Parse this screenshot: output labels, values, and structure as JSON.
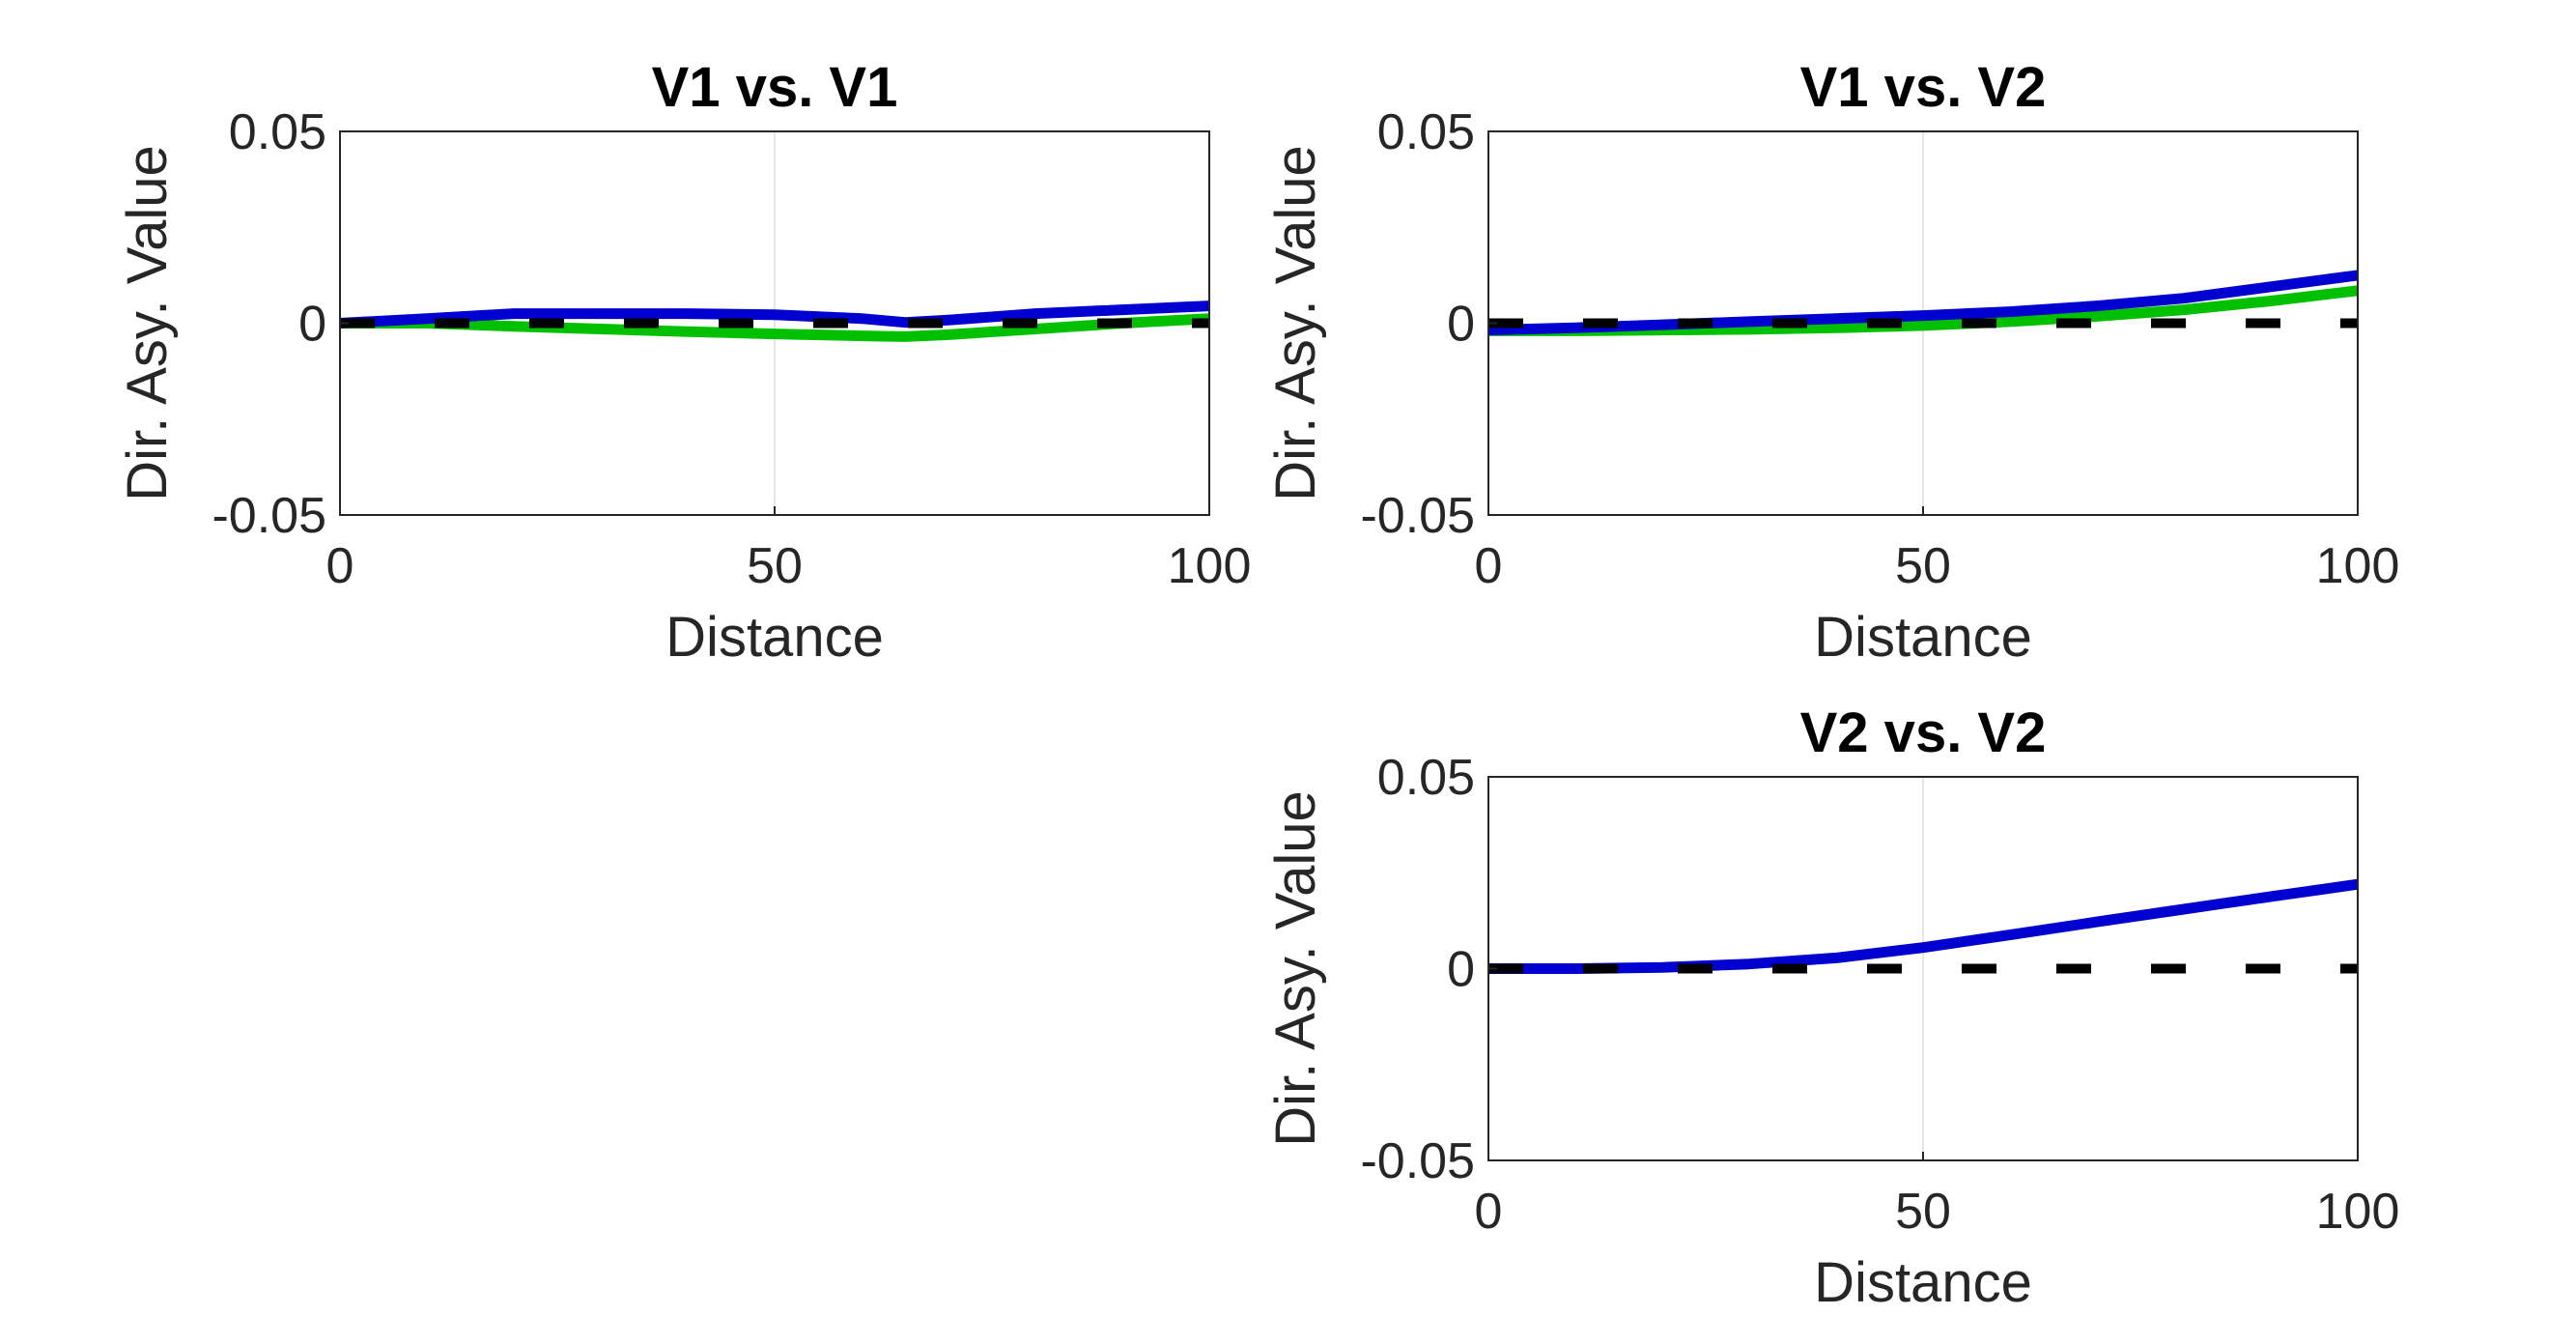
{
  "figure": {
    "background": "#ffffff",
    "axis_color": "#262626",
    "grid_color": "#e6e6e6"
  },
  "chart_data": [
    {
      "type": "line",
      "title": "V1 vs. V1",
      "xlabel": "Distance",
      "ylabel": "Dir. Asy. Value",
      "xlim": [
        0,
        100
      ],
      "ylim": [
        -0.05,
        0.05
      ],
      "xticks": [
        "0",
        "50",
        "100"
      ],
      "yticks": [
        "0.05",
        "0",
        "-0.05"
      ],
      "grid": "x",
      "series": [
        {
          "color": "#00c000",
          "width": 11,
          "dashed": false,
          "x": [
            0,
            10,
            20,
            30,
            40,
            50,
            60,
            65,
            70,
            80,
            90,
            100
          ],
          "y": [
            0,
            0,
            -0.0008,
            -0.0015,
            -0.0022,
            -0.0028,
            -0.0033,
            -0.0035,
            -0.003,
            -0.0015,
            0,
            0.0012
          ]
        },
        {
          "color": "#0000d0",
          "width": 11,
          "dashed": false,
          "x": [
            0,
            10,
            20,
            30,
            40,
            50,
            60,
            65,
            70,
            80,
            90,
            100
          ],
          "y": [
            0,
            0.0012,
            0.0025,
            0.0025,
            0.0025,
            0.0022,
            0.0012,
            0.0002,
            0.0008,
            0.0025,
            0.0035,
            0.0045
          ]
        },
        {
          "color": "#000000",
          "width": 10,
          "dashed": true,
          "x": [
            0,
            100
          ],
          "y": [
            0,
            0
          ]
        }
      ]
    },
    {
      "type": "line",
      "title": "V1 vs. V2",
      "xlabel": "Distance",
      "ylabel": "Dir. Asy. Value",
      "xlim": [
        0,
        100
      ],
      "ylim": [
        -0.05,
        0.05
      ],
      "xticks": [
        "0",
        "50",
        "100"
      ],
      "yticks": [
        "0.05",
        "0",
        "-0.05"
      ],
      "grid": "x",
      "series": [
        {
          "color": "#00c000",
          "width": 11,
          "dashed": false,
          "x": [
            0,
            10,
            20,
            30,
            40,
            50,
            60,
            70,
            80,
            90,
            100
          ],
          "y": [
            -0.002,
            -0.002,
            -0.0018,
            -0.0016,
            -0.0012,
            -0.0006,
            0.0004,
            0.0018,
            0.0035,
            0.0058,
            0.0085
          ]
        },
        {
          "color": "#0000d0",
          "width": 11,
          "dashed": false,
          "x": [
            0,
            10,
            20,
            30,
            40,
            50,
            60,
            70,
            80,
            90,
            100
          ],
          "y": [
            -0.0018,
            -0.0012,
            -0.0004,
            0.0004,
            0.0012,
            0.002,
            0.003,
            0.0045,
            0.0065,
            0.0095,
            0.0125
          ]
        },
        {
          "color": "#000000",
          "width": 10,
          "dashed": true,
          "x": [
            0,
            100
          ],
          "y": [
            0,
            0
          ]
        }
      ]
    },
    {
      "type": "line",
      "title": "V2 vs. V2",
      "xlabel": "Distance",
      "ylabel": "Dir. Asy. Value",
      "xlim": [
        0,
        100
      ],
      "ylim": [
        -0.05,
        0.05
      ],
      "xticks": [
        "0",
        "50",
        "100"
      ],
      "yticks": [
        "0.05",
        "0",
        "-0.05"
      ],
      "grid": "x",
      "series": [
        {
          "color": "#0000d0",
          "width": 11,
          "dashed": false,
          "x": [
            0,
            10,
            20,
            30,
            40,
            50,
            60,
            70,
            80,
            90,
            100
          ],
          "y": [
            0,
            0,
            0.0003,
            0.0012,
            0.0028,
            0.0055,
            0.0088,
            0.0122,
            0.0155,
            0.0188,
            0.022
          ]
        },
        {
          "color": "#000000",
          "width": 10,
          "dashed": true,
          "x": [
            0,
            100
          ],
          "y": [
            0,
            0
          ]
        }
      ]
    }
  ]
}
